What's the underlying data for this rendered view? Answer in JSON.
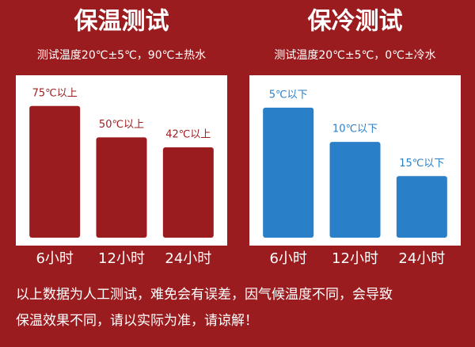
{
  "chart_data": [
    {
      "type": "bar",
      "title": "保温测试",
      "subtitle": "测试温度20℃±5℃，90℃±热水",
      "categories": [
        "6小时",
        "12小时",
        "24小时"
      ],
      "values": [
        75,
        50,
        42
      ],
      "value_labels": [
        "75℃以上",
        "50℃以上",
        "42℃以上"
      ],
      "color": "#9b1c1f",
      "ylim": [
        -30,
        90
      ],
      "grid": false
    },
    {
      "type": "bar",
      "title": "保冷测试",
      "subtitle": "测试温度20℃±5℃，0℃±冷水",
      "categories": [
        "6小时",
        "12小时",
        "24小时"
      ],
      "values": [
        5,
        10,
        15
      ],
      "value_labels": [
        "5℃以下",
        "10℃以下",
        "15℃以下"
      ],
      "color": "#2a7fc9",
      "ylim": [
        24,
        2
      ],
      "grid": false
    }
  ],
  "footer": {
    "lines": [
      "以上数据为人工测试，难免会有误差，因气候温度不同，会导致",
      "保温效果不同，请以实际为准，请谅解！"
    ]
  }
}
